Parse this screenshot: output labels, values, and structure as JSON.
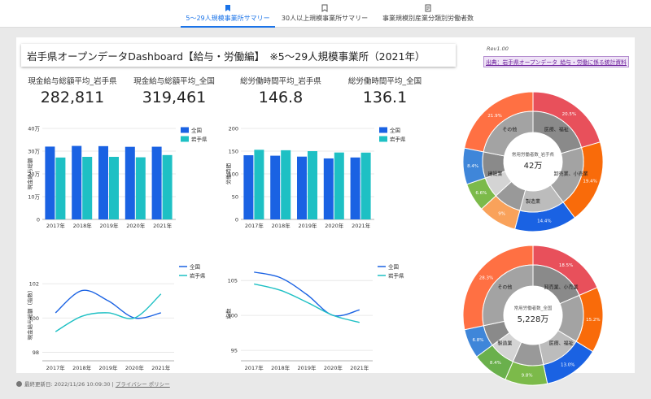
{
  "nav": {
    "tabs": [
      {
        "label": "5～29人規模事業所サマリー"
      },
      {
        "label": "30人以上規模事業所サマリー"
      },
      {
        "label": "事業規模別産業分類別労働者数"
      }
    ]
  },
  "header": {
    "title": "岩手県オープンデータDashboard【給与・労働編】　※5～29人規模事業所（2021年）",
    "rev": "Rev1.00",
    "source_link": "出典：岩手県オープンデータ_給与・労働に係る統計資料"
  },
  "kpis": [
    {
      "label": "現金給与総額平均_岩手県",
      "value": "282,811"
    },
    {
      "label": "現金給与総額平均_全国",
      "value": "319,461"
    },
    {
      "label": "総労働時間平均_岩手県",
      "value": "146.8"
    },
    {
      "label": "総労働時間平均_全国",
      "value": "136.1"
    }
  ],
  "footer": {
    "updated": "最終更新日: 2022/11/26 10:09:30",
    "privacy": "プライバシー ポリシー"
  },
  "colors": {
    "national": "#1a62e3",
    "iwate": "#1ec0c4",
    "accent": "#1a73e8"
  },
  "chart_data": [
    {
      "type": "bar",
      "categories": [
        "2017年",
        "2018年",
        "2019年",
        "2020年",
        "2021年"
      ],
      "series": [
        {
          "name": "全国",
          "values": [
            320000,
            323000,
            322000,
            319000,
            319461
          ]
        },
        {
          "name": "岩手県",
          "values": [
            272000,
            275000,
            275000,
            273000,
            282811
          ]
        }
      ],
      "ylabel": "現金給与総額",
      "ylim": [
        0,
        400000
      ],
      "yticks": [
        "0",
        "10万",
        "20万",
        "30万",
        "40万"
      ],
      "legend": "top-right"
    },
    {
      "type": "bar",
      "categories": [
        "2017年",
        "2018年",
        "2019年",
        "2020年",
        "2021年"
      ],
      "series": [
        {
          "name": "全国",
          "values": [
            141,
            140,
            138,
            134,
            136.1
          ]
        },
        {
          "name": "岩手県",
          "values": [
            153,
            152,
            150,
            147,
            146.8
          ]
        }
      ],
      "ylabel": "労働時間",
      "ylim": [
        0,
        200
      ],
      "yticks": [
        "0",
        "50",
        "100",
        "150",
        "200"
      ],
      "legend": "top-right"
    },
    {
      "type": "line",
      "x": [
        "2017年",
        "2018年",
        "2019年",
        "2020年",
        "2021年"
      ],
      "series": [
        {
          "name": "全国",
          "values": [
            100.3,
            101.6,
            101.0,
            100.0,
            100.3
          ]
        },
        {
          "name": "岩手県",
          "values": [
            99.2,
            100.1,
            100.3,
            100.0,
            101.4
          ]
        }
      ],
      "ylabel": "現金給与総額（指数）",
      "ylim": [
        97.5,
        103
      ],
      "yticks": [
        98,
        100,
        102
      ],
      "legend": "top-right"
    },
    {
      "type": "line",
      "x": [
        "2017年",
        "2018年",
        "2019年",
        "2020年",
        "2021年"
      ],
      "series": [
        {
          "name": "全国",
          "values": [
            106.2,
            105.4,
            103.0,
            100.0,
            100.8
          ]
        },
        {
          "name": "岩手県",
          "values": [
            104.5,
            103.6,
            101.9,
            100.0,
            99.0
          ]
        }
      ],
      "ylabel": "指数",
      "ylim": [
        93.5,
        107
      ],
      "yticks": [
        95,
        100,
        105
      ],
      "legend": "top-right"
    },
    {
      "type": "pie",
      "title": "常用労働者数_岩手県",
      "center_value": "42万",
      "inner_labels": [
        "医療、福祉",
        "卸売業、小売業",
        "製造業",
        "建設業",
        "その他"
      ],
      "slices": [
        {
          "value": 20.5,
          "label": "20.5%",
          "color": "#e8505b"
        },
        {
          "value": 19.4,
          "label": "19.4%",
          "color": "#f96b0a"
        },
        {
          "value": 14.4,
          "label": "14.4%",
          "color": "#1a62e3"
        },
        {
          "value": 9.0,
          "label": "9%",
          "color": "#f9a25b"
        },
        {
          "value": 6.6,
          "label": "6.6%",
          "color": "#7cba4a"
        },
        {
          "value": 8.4,
          "label": "8.4%",
          "color": "#3f86d9"
        },
        {
          "value": 21.9,
          "label": "21.9%",
          "color": "#ff7043"
        }
      ]
    },
    {
      "type": "pie",
      "title": "常用労働者数_全国",
      "center_value": "5,228万",
      "inner_labels": [
        "卸売業、小売業",
        "医療、福祉",
        "製造業",
        "その他"
      ],
      "slices": [
        {
          "value": 18.5,
          "label": "18.5%",
          "color": "#e8505b"
        },
        {
          "value": 15.2,
          "label": "15.2%",
          "color": "#f96b0a"
        },
        {
          "value": 13.0,
          "label": "13.0%",
          "color": "#1a62e3"
        },
        {
          "value": 9.8,
          "label": "9.8%",
          "color": "#7cba4a"
        },
        {
          "value": 8.4,
          "label": "8.4%",
          "color": "#6ab04c"
        },
        {
          "value": 6.8,
          "label": "6.8%",
          "color": "#3f86d9"
        },
        {
          "value": 28.3,
          "label": "28.3%",
          "color": "#ff7043"
        }
      ]
    }
  ]
}
